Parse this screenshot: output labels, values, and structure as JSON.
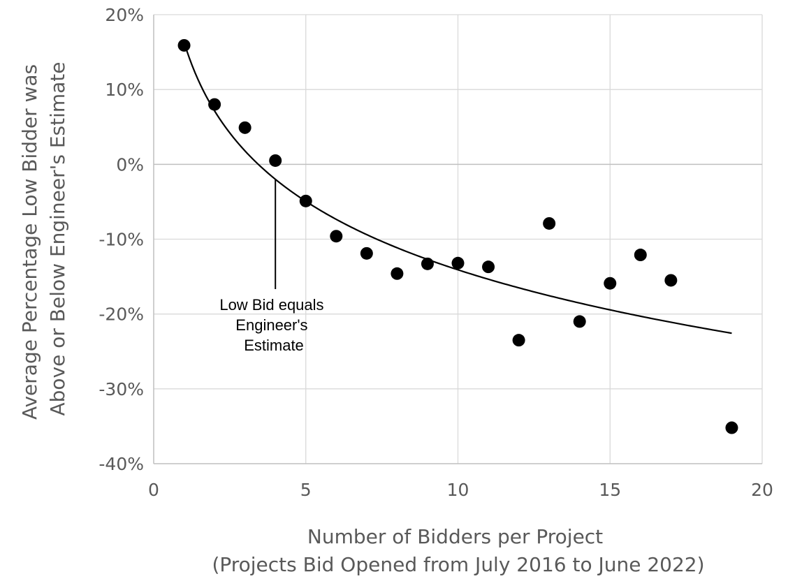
{
  "chart_data": {
    "type": "scatter",
    "xlabel_lines": [
      "Number of Bidders per Project",
      "(Projects Bid Opened from July 2016 to June 2022)"
    ],
    "ylabel_lines": [
      "Average Percentage Low Bidder was",
      "Above or Below Engineer's Estimate"
    ],
    "xlim": [
      0,
      20
    ],
    "ylim": [
      -40,
      20
    ],
    "x_ticks": [
      0,
      5,
      10,
      15,
      20
    ],
    "y_ticks": [
      20,
      10,
      0,
      -10,
      -20,
      -30,
      -40
    ],
    "x_tick_labels": [
      "0",
      "5",
      "10",
      "15",
      "20"
    ],
    "y_tick_labels": [
      "20%",
      "10%",
      "0%",
      "-10%",
      "-20%",
      "-30%",
      "-40%"
    ],
    "grid": true,
    "points": [
      {
        "x": 1,
        "y": 15.9
      },
      {
        "x": 2,
        "y": 8.0
      },
      {
        "x": 3,
        "y": 4.9
      },
      {
        "x": 4,
        "y": 0.5
      },
      {
        "x": 5,
        "y": -4.9
      },
      {
        "x": 6,
        "y": -9.6
      },
      {
        "x": 7,
        "y": -11.9
      },
      {
        "x": 8,
        "y": -14.6
      },
      {
        "x": 9,
        "y": -13.3
      },
      {
        "x": 10,
        "y": -13.2
      },
      {
        "x": 11,
        "y": -13.7
      },
      {
        "x": 12,
        "y": -23.5
      },
      {
        "x": 13,
        "y": -7.9
      },
      {
        "x": 14,
        "y": -21.0
      },
      {
        "x": 15,
        "y": -15.9
      },
      {
        "x": 16,
        "y": -12.1
      },
      {
        "x": 17,
        "y": -15.5
      },
      {
        "x": 19,
        "y": -35.2
      }
    ],
    "trendline": {
      "type": "logarithmic",
      "intercept": 16.3,
      "log_coefficient": -13.2,
      "x_range": [
        1,
        19
      ]
    },
    "annotation": {
      "lines": [
        "Low Bid equals",
        "Engineer's",
        "Estimate"
      ],
      "points_to": {
        "x": 4,
        "y": -2
      }
    },
    "colors": {
      "marker": "#000000",
      "trendline": "#000000",
      "grid": "#d9d9d9",
      "axis": "#bfbfbf",
      "text": "#595959"
    }
  }
}
